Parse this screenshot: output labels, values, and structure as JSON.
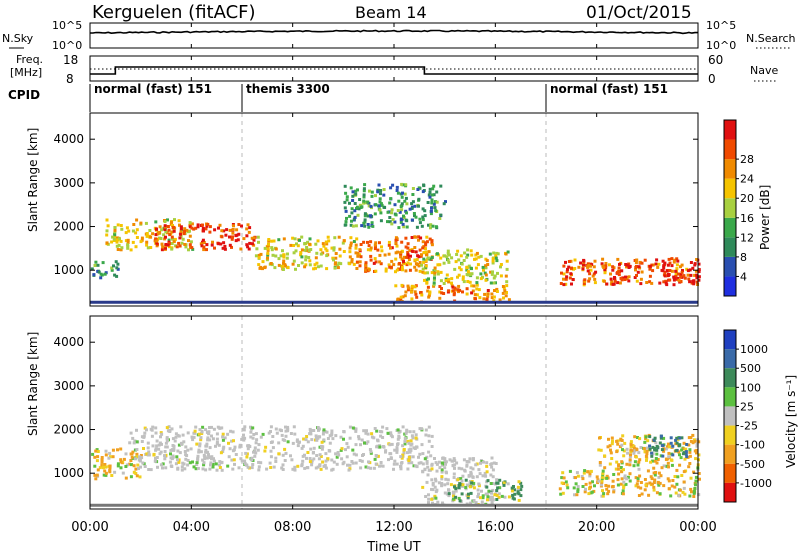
{
  "header": {
    "station": "Kerguelen (fitACF)",
    "beam": "Beam 14",
    "date": "01/Oct/2015"
  },
  "noise_panel": {
    "left_label": "N.Sky",
    "right_label": "N.Search",
    "left_ticks": [
      "10^5",
      "10^0"
    ],
    "right_ticks": [
      "10^5",
      "10^0"
    ]
  },
  "freq_panel": {
    "left_label_line1": "Freq.",
    "left_label_line2": "[MHz]",
    "right_label": "Nave",
    "left_ticks": [
      "18",
      "8"
    ],
    "right_ticks": [
      "60",
      "0"
    ]
  },
  "cpid": {
    "label": "CPID",
    "modes": [
      {
        "name": "normal (fast) 151",
        "start_hour": 0
      },
      {
        "name": "themis 3300",
        "start_hour": 6
      },
      {
        "name": "normal (fast) 151",
        "start_hour": 18
      }
    ]
  },
  "power_panel": {
    "ylabel": "Slant Range [km]",
    "yticks": [
      "1000",
      "2000",
      "3000",
      "4000"
    ],
    "colorbar_label": "Power [dB]",
    "colorbar_ticks": [
      "4",
      "8",
      "12",
      "16",
      "20",
      "24",
      "28"
    ],
    "colors": [
      "#1f2fe0",
      "#2a4fb0",
      "#2f8a5a",
      "#3aa84a",
      "#a8d040",
      "#f5c400",
      "#f08a00",
      "#f04a00",
      "#e01010"
    ]
  },
  "velocity_panel": {
    "ylabel": "Slant Range [km]",
    "yticks": [
      "1000",
      "2000",
      "3000",
      "4000"
    ],
    "colorbar_label": "Velocity [m s⁻¹]",
    "colorbar_ticks": [
      "1000",
      "500",
      "100",
      "25",
      "-25",
      "-100",
      "-500",
      "-1000"
    ],
    "colors": [
      "#2040c0",
      "#3a6aa8",
      "#3d8a5a",
      "#5cc040",
      "#c0c0c0",
      "#f0d020",
      "#f0a020",
      "#f06000",
      "#e01010"
    ]
  },
  "xaxis": {
    "label": "Time UT",
    "ticks": [
      "00:00",
      "04:00",
      "08:00",
      "12:00",
      "16:00",
      "20:00",
      "00:00"
    ]
  },
  "chart_data": [
    {
      "type": "heatmap",
      "title": "Power",
      "xlabel": "Time UT",
      "ylabel": "Slant Range [km]",
      "x_range_hours": [
        0,
        24
      ],
      "ylim": [
        180,
        4600
      ],
      "colorbar": {
        "label": "Power [dB]",
        "range": [
          0,
          30
        ]
      },
      "blobs": [
        {
          "t": [
            0.0,
            1.1
          ],
          "r": [
            850,
            1250
          ],
          "value": 10
        },
        {
          "t": [
            0.6,
            4.0
          ],
          "r": [
            1500,
            2200
          ],
          "value": 18
        },
        {
          "t": [
            2.5,
            6.5
          ],
          "r": [
            1500,
            2100
          ],
          "value": 26
        },
        {
          "t": [
            6.5,
            10.5
          ],
          "r": [
            1050,
            1800
          ],
          "value": 18
        },
        {
          "t": [
            10.5,
            13.0
          ],
          "r": [
            1000,
            1700
          ],
          "value": 22
        },
        {
          "t": [
            12.0,
            13.5
          ],
          "r": [
            1100,
            1800
          ],
          "value": 24
        },
        {
          "t": [
            12.0,
            16.5
          ],
          "r": [
            300,
            700
          ],
          "value": 22
        },
        {
          "t": [
            13.0,
            16.5
          ],
          "r": [
            700,
            1500
          ],
          "value": 16
        },
        {
          "t": [
            18.5,
            24.0
          ],
          "r": [
            700,
            1300
          ],
          "value": 24
        },
        {
          "t": [
            20.5,
            21.3
          ],
          "r": [
            700,
            1200
          ],
          "value": 28
        },
        {
          "t": [
            22.5,
            24.0
          ],
          "r": [
            700,
            1200
          ],
          "value": 28
        },
        {
          "t": [
            10.0,
            14.0
          ],
          "r": [
            2000,
            3000
          ],
          "value": 10
        }
      ]
    },
    {
      "type": "heatmap",
      "title": "Velocity",
      "xlabel": "Time UT",
      "ylabel": "Slant Range [km]",
      "x_range_hours": [
        0,
        24
      ],
      "ylim": [
        180,
        4600
      ],
      "colorbar": {
        "label": "Velocity [m s⁻¹]",
        "range": [
          -1000,
          1000
        ]
      },
      "blobs": [
        {
          "t": [
            0.0,
            2.0
          ],
          "r": [
            900,
            1600
          ],
          "value": -100
        },
        {
          "t": [
            1.5,
            13.5
          ],
          "r": [
            1100,
            2100
          ],
          "value": 0
        },
        {
          "t": [
            13.0,
            16.0
          ],
          "r": [
            300,
            1400
          ],
          "value": 0
        },
        {
          "t": [
            14.0,
            17.0
          ],
          "r": [
            400,
            900
          ],
          "value": 100
        },
        {
          "t": [
            18.5,
            24.0
          ],
          "r": [
            500,
            1100
          ],
          "value": -100
        },
        {
          "t": [
            20.0,
            24.0
          ],
          "r": [
            1100,
            1900
          ],
          "value": -100
        },
        {
          "t": [
            22.0,
            23.5
          ],
          "r": [
            1400,
            1900
          ],
          "value": 500
        }
      ]
    }
  ]
}
